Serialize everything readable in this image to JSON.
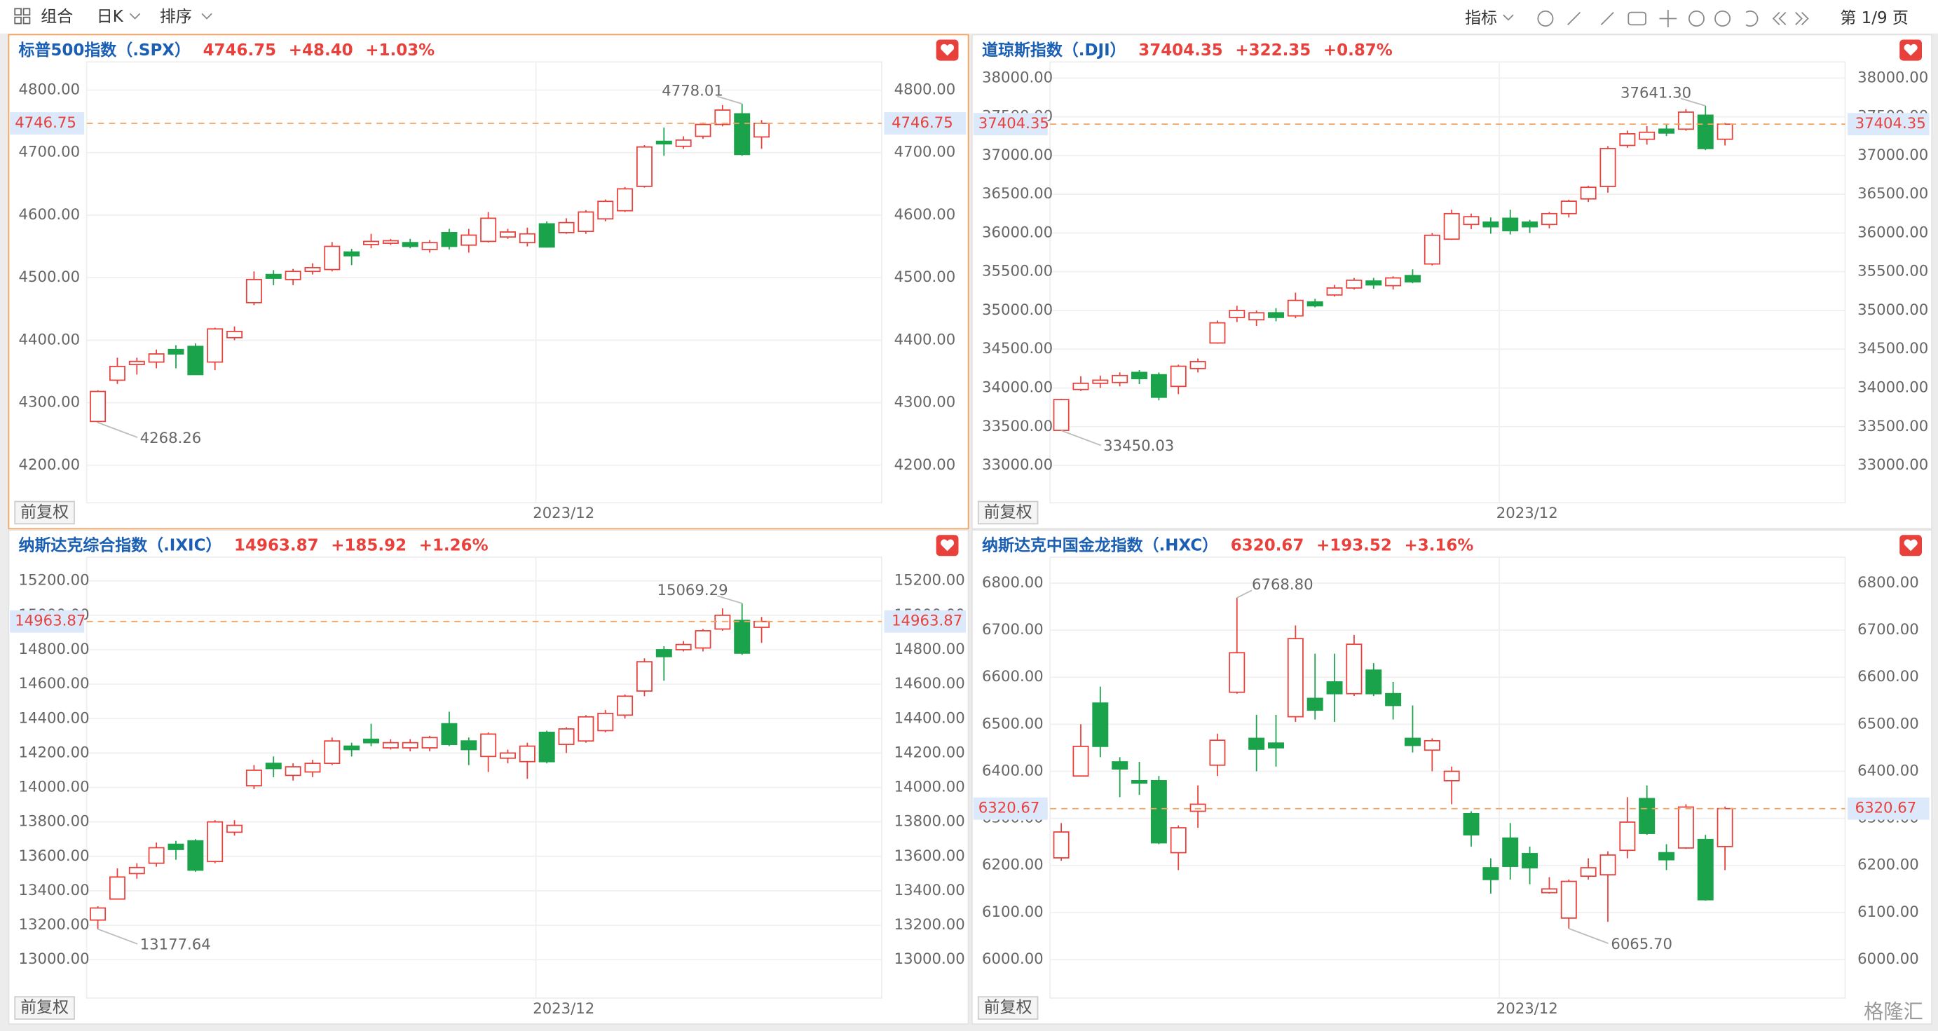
{
  "toolbar": {
    "combine": "组合",
    "period": "日K",
    "sort": "排序",
    "indicator": "指标",
    "page": "第 1/9 页"
  },
  "watermark": "格隆汇",
  "chart_data": [
    {
      "type": "candlestick",
      "title": "标普500指数（.SPX）",
      "price": 4746.75,
      "change": "+48.40",
      "change_pct": "+1.03%",
      "x_label": "2023/12",
      "adjust": "前复权",
      "high_label": 4778.01,
      "low_label": 4268.26,
      "up_color": "#e8413c",
      "down_color": "#1aa34a",
      "grid": true,
      "ylim": [
        4140,
        4845
      ],
      "yticks": [
        {
          "value": 4200,
          "label": "4200.00"
        },
        {
          "value": 4300,
          "label": "4300.00"
        },
        {
          "value": 4400,
          "label": "4400.00"
        },
        {
          "value": 4500,
          "label": "4500.00"
        },
        {
          "value": 4600,
          "label": "4600.00"
        },
        {
          "value": 4700,
          "label": "4700.00"
        },
        {
          "value": 4800,
          "label": "4800.00"
        }
      ],
      "ohlc": [
        [
          4270,
          4320,
          4268.26,
          4318
        ],
        [
          4336,
          4372,
          4330,
          4358
        ],
        [
          4361,
          4372,
          4345,
          4366
        ],
        [
          4365,
          4385,
          4355,
          4378
        ],
        [
          4385,
          4392,
          4355,
          4378
        ],
        [
          4390,
          4395,
          4345,
          4345
        ],
        [
          4365,
          4420,
          4352,
          4418
        ],
        [
          4404,
          4422,
          4400,
          4414
        ],
        [
          4460,
          4510,
          4456,
          4497
        ],
        [
          4505,
          4512,
          4488,
          4499
        ],
        [
          4497,
          4514,
          4488,
          4510
        ],
        [
          4510,
          4523,
          4505,
          4516
        ],
        [
          4513,
          4557,
          4510,
          4550
        ],
        [
          4541,
          4546,
          4520,
          4535
        ],
        [
          4553,
          4570,
          4547,
          4558
        ],
        [
          4555,
          4562,
          4552,
          4559
        ],
        [
          4556,
          4562,
          4547,
          4550
        ],
        [
          4545,
          4560,
          4540,
          4556
        ],
        [
          4572,
          4578,
          4545,
          4550
        ],
        [
          4552,
          4578,
          4540,
          4568
        ],
        [
          4558,
          4605,
          4556,
          4595
        ],
        [
          4565,
          4578,
          4562,
          4573
        ],
        [
          4556,
          4580,
          4550,
          4570
        ],
        [
          4586,
          4590,
          4548,
          4549
        ],
        [
          4572,
          4595,
          4570,
          4588
        ],
        [
          4574,
          4608,
          4570,
          4605
        ],
        [
          4594,
          4625,
          4590,
          4622
        ],
        [
          4607,
          4645,
          4605,
          4642
        ],
        [
          4646,
          4712,
          4644,
          4709
        ],
        [
          4718,
          4740,
          4695,
          4714
        ],
        [
          4710,
          4726,
          4706,
          4720
        ],
        [
          4726,
          4748,
          4722,
          4745
        ],
        [
          4745,
          4776,
          4742,
          4768
        ],
        [
          4762,
          4778.01,
          4695,
          4697
        ],
        [
          4725,
          4752,
          4706,
          4746.75
        ]
      ]
    },
    {
      "type": "candlestick",
      "title": "道琼斯指数（.DJI）",
      "price": 37404.35,
      "change": "+322.35",
      "change_pct": "+0.87%",
      "x_label": "2023/12",
      "adjust": "前复权",
      "high_label": {
        "value": 37641.3,
        "label": "37641.30"
      },
      "low_label": 33450.03,
      "up_color": "#e8413c",
      "down_color": "#1aa34a",
      "grid": true,
      "ylim": [
        32518,
        38208
      ],
      "yticks": [
        {
          "value": 33000,
          "label": "33000.00"
        },
        {
          "value": 33500,
          "label": "33500.00"
        },
        {
          "value": 34000,
          "label": "34000.00"
        },
        {
          "value": 34500,
          "label": "34500.00"
        },
        {
          "value": 35000,
          "label": "35000.00"
        },
        {
          "value": 35500,
          "label": "35500.00"
        },
        {
          "value": 36000,
          "label": "36000.00"
        },
        {
          "value": 36500,
          "label": "36500.00"
        },
        {
          "value": 37000,
          "label": "37000.00"
        },
        {
          "value": 37500,
          "label": "37500.00"
        },
        {
          "value": 38000,
          "label": "38000.00"
        }
      ],
      "ohlc": [
        [
          33452,
          33860,
          33450.03,
          33850
        ],
        [
          33980,
          34150,
          33960,
          34060
        ],
        [
          34060,
          34160,
          34000,
          34100
        ],
        [
          34070,
          34200,
          34020,
          34160
        ],
        [
          34200,
          34230,
          34050,
          34120
        ],
        [
          34170,
          34200,
          33840,
          33880
        ],
        [
          34020,
          34300,
          33920,
          34280
        ],
        [
          34250,
          34380,
          34200,
          34340
        ],
        [
          34580,
          34870,
          34570,
          34840
        ],
        [
          34910,
          35060,
          34850,
          35000
        ],
        [
          34880,
          35000,
          34800,
          34970
        ],
        [
          34970,
          35030,
          34860,
          34910
        ],
        [
          34930,
          35230,
          34900,
          35130
        ],
        [
          35110,
          35150,
          35040,
          35060
        ],
        [
          35200,
          35330,
          35180,
          35290
        ],
        [
          35290,
          35420,
          35270,
          35390
        ],
        [
          35380,
          35420,
          35280,
          35330
        ],
        [
          35320,
          35440,
          35270,
          35420
        ],
        [
          35450,
          35530,
          35350,
          35370
        ],
        [
          35600,
          36000,
          35580,
          35970
        ],
        [
          35920,
          36300,
          35910,
          36250
        ],
        [
          36110,
          36250,
          36050,
          36210
        ],
        [
          36140,
          36200,
          35990,
          36080
        ],
        [
          36190,
          36300,
          35980,
          36030
        ],
        [
          36140,
          36170,
          36000,
          36080
        ],
        [
          36110,
          36270,
          36060,
          36250
        ],
        [
          36250,
          36430,
          36200,
          36410
        ],
        [
          36440,
          36610,
          36400,
          36590
        ],
        [
          36600,
          37120,
          36520,
          37090
        ],
        [
          37130,
          37320,
          37100,
          37280
        ],
        [
          37210,
          37380,
          37140,
          37300
        ],
        [
          37340,
          37400,
          37250,
          37290
        ],
        [
          37340,
          37600,
          37320,
          37560
        ],
        [
          37520,
          37641.3,
          37070,
          37090
        ],
        [
          37210,
          37420,
          37130,
          37404.35
        ]
      ]
    },
    {
      "type": "candlestick",
      "title": "纳斯达克综合指数（.IXIC）",
      "price": 14963.87,
      "change": "+185.92",
      "change_pct": "+1.26%",
      "x_label": "2023/12",
      "adjust": "前复权",
      "high_label": 15069.29,
      "low_label": 13177.64,
      "up_color": "#e8413c",
      "down_color": "#1aa34a",
      "grid": true,
      "ylim": [
        12777,
        15337
      ],
      "yticks": [
        {
          "value": 13000,
          "label": "13000.00"
        },
        {
          "value": 13200,
          "label": "13200.00"
        },
        {
          "value": 13400,
          "label": "13400.00"
        },
        {
          "value": 13600,
          "label": "13600.00"
        },
        {
          "value": 13800,
          "label": "13800.00"
        },
        {
          "value": 14000,
          "label": "14000.00"
        },
        {
          "value": 14200,
          "label": "14200.00"
        },
        {
          "value": 14400,
          "label": "14400.00"
        },
        {
          "value": 14600,
          "label": "14600.00"
        },
        {
          "value": 14800,
          "label": "14800.00"
        },
        {
          "value": 15000,
          "label": "15000.00"
        },
        {
          "value": 15200,
          "label": "15200.00"
        }
      ],
      "ohlc": [
        [
          13230,
          13310,
          13177.64,
          13300
        ],
        [
          13352,
          13530,
          13350,
          13480
        ],
        [
          13500,
          13560,
          13470,
          13535
        ],
        [
          13560,
          13680,
          13540,
          13650
        ],
        [
          13670,
          13690,
          13580,
          13640
        ],
        [
          13690,
          13700,
          13510,
          13520
        ],
        [
          13570,
          13810,
          13560,
          13800
        ],
        [
          13740,
          13810,
          13720,
          13780
        ],
        [
          14010,
          14130,
          13990,
          14100
        ],
        [
          14140,
          14180,
          14060,
          14110
        ],
        [
          14070,
          14140,
          14040,
          14120
        ],
        [
          14090,
          14160,
          14060,
          14140
        ],
        [
          14140,
          14290,
          14130,
          14270
        ],
        [
          14240,
          14260,
          14180,
          14220
        ],
        [
          14280,
          14370,
          14240,
          14260
        ],
        [
          14230,
          14280,
          14220,
          14260
        ],
        [
          14230,
          14280,
          14210,
          14260
        ],
        [
          14230,
          14300,
          14210,
          14290
        ],
        [
          14370,
          14440,
          14240,
          14250
        ],
        [
          14270,
          14290,
          14130,
          14220
        ],
        [
          14180,
          14320,
          14090,
          14310
        ],
        [
          14170,
          14220,
          14140,
          14200
        ],
        [
          14150,
          14260,
          14050,
          14240
        ],
        [
          14320,
          14330,
          14140,
          14150
        ],
        [
          14250,
          14350,
          14200,
          14340
        ],
        [
          14270,
          14420,
          14260,
          14410
        ],
        [
          14330,
          14450,
          14320,
          14430
        ],
        [
          14420,
          14540,
          14400,
          14530
        ],
        [
          14560,
          14750,
          14530,
          14730
        ],
        [
          14800,
          14820,
          14620,
          14760
        ],
        [
          14800,
          14850,
          14790,
          14830
        ],
        [
          14810,
          14920,
          14790,
          14910
        ],
        [
          14920,
          15040,
          14910,
          15000
        ],
        [
          14970,
          15069.29,
          14770,
          14780
        ],
        [
          14930,
          14990,
          14840,
          14963.87
        ]
      ]
    },
    {
      "type": "candlestick",
      "title": "纳斯达克中国金龙指数（.HXC）",
      "price": 6320.67,
      "change": "+193.52",
      "change_pct": "+3.16%",
      "x_label": "2023/12",
      "adjust": "前复权",
      "high_label": {
        "value": 6768.8,
        "label": "6768.80"
      },
      "low_label": {
        "value": 6065.7,
        "label": "6065.70"
      },
      "up_color": "#e8413c",
      "down_color": "#1aa34a",
      "grid": true,
      "ylim": [
        5918,
        6855
      ],
      "yticks": [
        {
          "value": 6000,
          "label": "6000.00"
        },
        {
          "value": 6100,
          "label": "6100.00"
        },
        {
          "value": 6200,
          "label": "6200.00"
        },
        {
          "value": 6300,
          "label": "6300.00"
        },
        {
          "value": 6400,
          "label": "6400.00"
        },
        {
          "value": 6500,
          "label": "6500.00"
        },
        {
          "value": 6600,
          "label": "6600.00"
        },
        {
          "value": 6700,
          "label": "6700.00"
        },
        {
          "value": 6800,
          "label": "6800.00"
        }
      ],
      "ohlc": [
        [
          6216,
          6290,
          6210,
          6271
        ],
        [
          6390,
          6500,
          6390,
          6453
        ],
        [
          6545,
          6580,
          6430,
          6453
        ],
        [
          6420,
          6430,
          6345,
          6405
        ],
        [
          6380,
          6420,
          6350,
          6375
        ],
        [
          6380,
          6390,
          6245,
          6248
        ],
        [
          6227,
          6285,
          6190,
          6280
        ],
        [
          6315,
          6370,
          6280,
          6330
        ],
        [
          6413,
          6480,
          6390,
          6466
        ],
        [
          6568,
          6768.8,
          6565,
          6652
        ],
        [
          6470,
          6520,
          6400,
          6447
        ],
        [
          6460,
          6520,
          6410,
          6450
        ],
        [
          6516,
          6710,
          6505,
          6682
        ],
        [
          6555,
          6650,
          6510,
          6530
        ],
        [
          6590,
          6650,
          6505,
          6565
        ],
        [
          6565,
          6690,
          6560,
          6670
        ],
        [
          6615,
          6630,
          6560,
          6565
        ],
        [
          6565,
          6590,
          6510,
          6540
        ],
        [
          6470,
          6540,
          6440,
          6455
        ],
        [
          6445,
          6470,
          6400,
          6465
        ],
        [
          6380,
          6410,
          6330,
          6400
        ],
        [
          6310,
          6315,
          6240,
          6265
        ],
        [
          6195,
          6215,
          6140,
          6170
        ],
        [
          6258,
          6290,
          6170,
          6198
        ],
        [
          6225,
          6240,
          6160,
          6195
        ],
        [
          6142,
          6175,
          6140,
          6150
        ],
        [
          6088,
          6170,
          6065.7,
          6166
        ],
        [
          6177,
          6215,
          6170,
          6195
        ],
        [
          6180,
          6230,
          6080,
          6222
        ],
        [
          6232,
          6345,
          6215,
          6292
        ],
        [
          6342,
          6370,
          6265,
          6268
        ],
        [
          6227,
          6245,
          6190,
          6212
        ],
        [
          6237,
          6330,
          6235,
          6324
        ],
        [
          6255,
          6265,
          6125,
          6127
        ],
        [
          6240,
          6325,
          6190,
          6320.67
        ]
      ]
    }
  ]
}
